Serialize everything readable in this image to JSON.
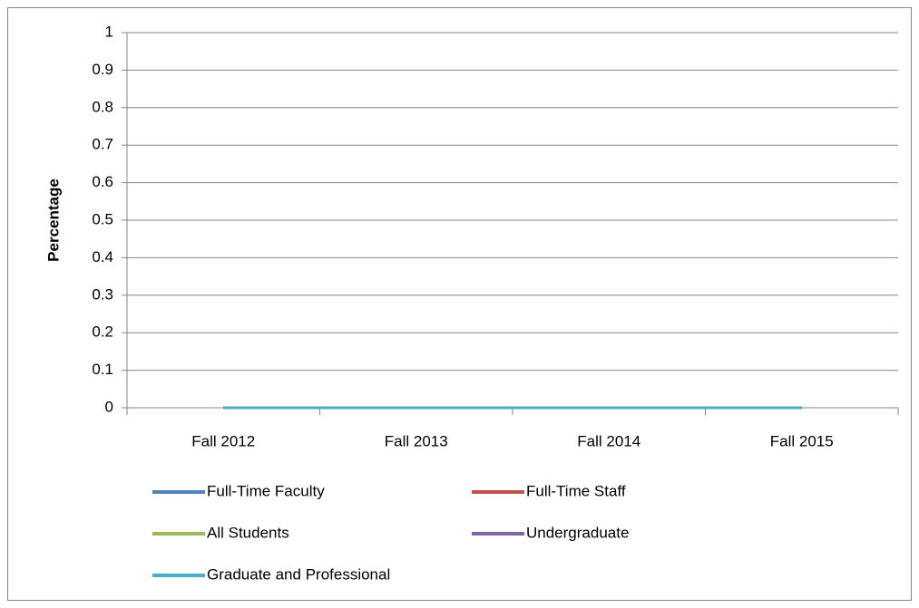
{
  "chart_data": {
    "type": "line",
    "y_label": "Percentage",
    "categories": [
      "Fall 2012",
      "Fall 2013",
      "Fall 2014",
      "Fall 2015"
    ],
    "series": [
      {
        "name": "Full-Time Faculty",
        "color": "#4f81bd",
        "values": [
          0,
          0,
          0,
          0
        ]
      },
      {
        "name": "Full-Time Staff",
        "color": "#c0504d",
        "values": [
          0,
          0,
          0,
          0
        ]
      },
      {
        "name": "All Students",
        "color": "#9bbb59",
        "values": [
          0,
          0,
          0,
          0
        ]
      },
      {
        "name": "Undergraduate",
        "color": "#8064a2",
        "values": [
          0,
          0,
          0,
          0
        ]
      },
      {
        "name": "Graduate and Professional",
        "color": "#4bacc6",
        "values": [
          0,
          0,
          0,
          0
        ]
      }
    ],
    "ylim": [
      0,
      1
    ],
    "yticks": [
      0,
      0.1,
      0.2,
      0.3,
      0.4,
      0.5,
      0.6,
      0.7,
      0.8,
      0.9,
      1
    ],
    "grid": true,
    "legend": "bottom"
  }
}
